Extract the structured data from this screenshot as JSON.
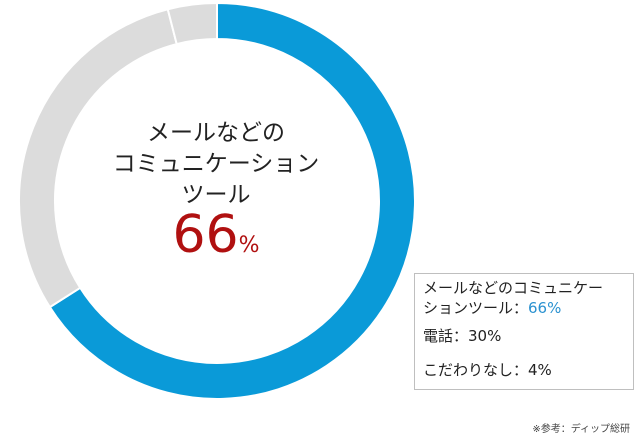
{
  "chart_data": {
    "type": "pie",
    "style": "donut",
    "slices": [
      {
        "name": "メールなどのコミュニケーションツール",
        "value": 66,
        "color": "#0a9ad8"
      },
      {
        "name": "電話",
        "value": 30,
        "color": "#dcdcdc"
      },
      {
        "name": "こだわりなし",
        "value": 4,
        "color": "#dcdcdc"
      }
    ],
    "center": {
      "lines": [
        "メールなどの",
        "コミュニケーション",
        "ツール"
      ],
      "value": "66",
      "unit": "%",
      "value_color": "#b01010"
    },
    "legend": {
      "placement": "bottom-right",
      "items": [
        {
          "label": "メールなどのコミュニケー",
          "label2": "ションツール：",
          "value": "66%",
          "value_color": "#2a91d0"
        },
        {
          "label": "電話：",
          "value": "30%"
        },
        {
          "label": "こだわりなし：",
          "value": "4%"
        }
      ]
    },
    "source": "※参考：ディップ総研"
  }
}
